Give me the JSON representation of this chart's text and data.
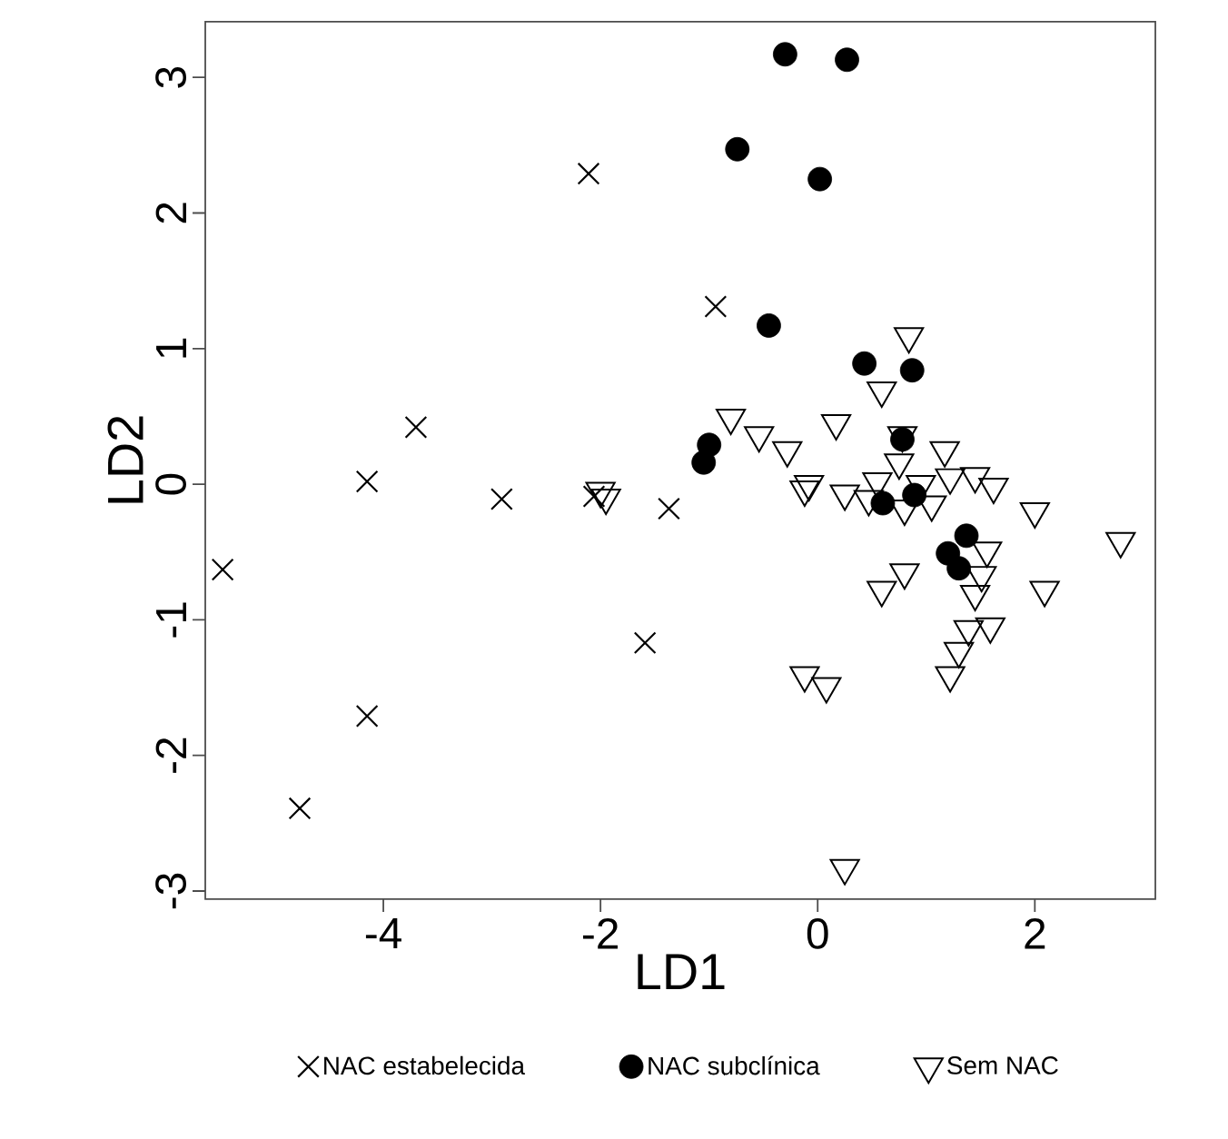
{
  "chart_data": {
    "type": "scatter",
    "xlabel": "LD1",
    "ylabel": "LD2",
    "xlim": [
      -5.64,
      3.11
    ],
    "ylim": [
      -3.06,
      3.41
    ],
    "xticks": [
      -4,
      -2,
      0,
      2
    ],
    "yticks": [
      -3,
      -2,
      -1,
      0,
      1,
      2,
      3
    ],
    "legend": "bottom",
    "grid": false,
    "series": [
      {
        "name": "NAC estabelecida",
        "color": "#000000",
        "marker": "cross",
        "x": [
          -5.48,
          -4.77,
          -4.15,
          -4.15,
          -3.7,
          -2.91,
          -2.11,
          -2.06,
          -1.37,
          -1.59,
          -0.94
        ],
        "values": [
          -0.63,
          -2.39,
          -1.71,
          0.02,
          0.42,
          -0.11,
          2.29,
          -0.09,
          -0.18,
          -1.17,
          1.31
        ]
      },
      {
        "name": "NAC subclínica",
        "color": "#000000",
        "marker": "circle",
        "x": [
          -0.3,
          0.27,
          -0.74,
          0.02,
          -0.45,
          -1.0,
          -1.05,
          0.43,
          0.87,
          0.78,
          0.6,
          0.89,
          1.37,
          1.2,
          1.3
        ],
        "values": [
          3.17,
          3.13,
          2.47,
          2.25,
          1.17,
          0.29,
          0.16,
          0.89,
          0.84,
          0.33,
          -0.14,
          -0.08,
          -0.38,
          -0.51,
          -0.62
        ]
      },
      {
        "name": "Sem NAC",
        "color": "#000000",
        "marker": "triangle",
        "x": [
          -2.0,
          -1.95,
          0.84,
          0.59,
          -0.8,
          -0.54,
          -0.28,
          0.17,
          0.78,
          1.17,
          0.75,
          -0.12,
          -0.08,
          0.25,
          0.47,
          0.55,
          0.8,
          1.05,
          1.22,
          1.45,
          1.62,
          0.95,
          2.0,
          2.79,
          1.56,
          1.51,
          0.8,
          0.59,
          2.09,
          1.45,
          -0.12,
          0.08,
          1.59,
          1.39,
          1.3,
          1.22,
          0.25
        ],
        "values": [
          -0.05,
          -0.1,
          1.09,
          0.69,
          0.49,
          0.36,
          0.25,
          0.45,
          0.36,
          0.25,
          0.16,
          -0.04,
          0.0,
          -0.07,
          -0.11,
          0.02,
          -0.18,
          -0.15,
          0.05,
          0.06,
          -0.02,
          0.0,
          -0.2,
          -0.42,
          -0.49,
          -0.67,
          -0.65,
          -0.78,
          -0.78,
          -0.81,
          -1.41,
          -1.49,
          -1.05,
          -1.07,
          -1.23,
          -1.41,
          -2.83
        ]
      }
    ]
  }
}
